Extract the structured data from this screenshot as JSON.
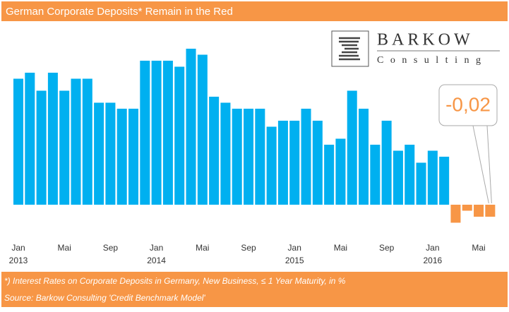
{
  "chart_data": {
    "type": "bar",
    "title": "German Corporate Deposits* Remain in the Red",
    "categories": [
      "Jan",
      null,
      null,
      null,
      "Mai",
      null,
      null,
      null,
      "Sep",
      null,
      null,
      null,
      "Jan",
      null,
      null,
      null,
      "Mai",
      null,
      null,
      null,
      "Sep",
      null,
      null,
      null,
      "Jan",
      null,
      null,
      null,
      "Mai",
      null,
      null,
      null,
      "Sep",
      null,
      null,
      null,
      "Jan",
      null,
      null,
      null,
      "Mai",
      null
    ],
    "years": [
      "2013",
      "2014",
      "2015",
      "2016"
    ],
    "values": [
      0.21,
      0.22,
      0.19,
      0.22,
      0.19,
      0.21,
      0.21,
      0.17,
      0.17,
      0.16,
      0.16,
      0.24,
      0.24,
      0.24,
      0.23,
      0.26,
      0.25,
      0.18,
      0.17,
      0.16,
      0.16,
      0.16,
      0.13,
      0.14,
      0.14,
      0.16,
      0.14,
      0.1,
      0.11,
      0.19,
      0.16,
      0.1,
      0.14,
      0.09,
      0.1,
      0.07,
      0.09,
      0.08,
      -0.03,
      -0.01,
      -0.02,
      -0.02
    ],
    "color": "#00b0f0",
    "negative_color": "#f79646",
    "ylim": [
      -0.05,
      0.3
    ],
    "annotation": "-0,02",
    "footnotes": [
      "*) Interest Rates on Corporate Deposits in Germany, New Business, ≤ 1 Year Maturity, in %",
      "Source: Barkow Consulting 'Credit Benchmark Model'"
    ],
    "logo": {
      "name": "BARKOW",
      "tagline": "Consulting"
    }
  }
}
